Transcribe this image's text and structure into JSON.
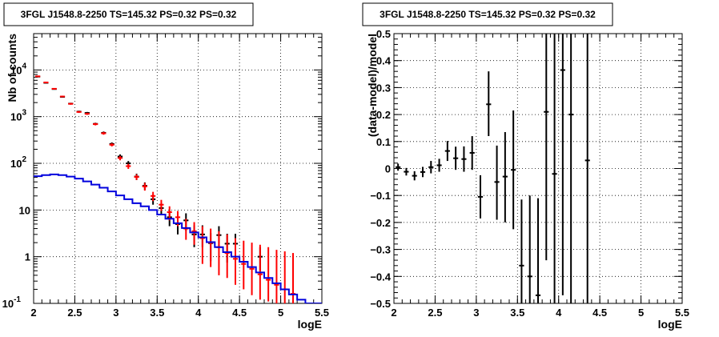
{
  "chart_data": [
    {
      "type": "scatter",
      "title": "3FGL J1548.8-2250 TS=145.32 PS=0.32 PS=0.32",
      "xlabel": "logE",
      "ylabel": "Nb of counts",
      "xlim": [
        2,
        5.5
      ],
      "ylim": [
        0.1,
        60000
      ],
      "yscale": "log",
      "grid": true,
      "xticks": [
        "2",
        "2.5",
        "3",
        "3.5",
        "4",
        "4.5",
        "5",
        "5.5"
      ],
      "yticks": [
        {
          "value": 0.1,
          "label": "10",
          "exp": "-1"
        },
        {
          "value": 1,
          "label": "1",
          "exp": ""
        },
        {
          "value": 10,
          "label": "10",
          "exp": ""
        },
        {
          "value": 100,
          "label": "10",
          "exp": "2"
        },
        {
          "value": 1000,
          "label": "10",
          "exp": "3"
        },
        {
          "value": 10000,
          "label": "10",
          "exp": "4"
        }
      ],
      "series": [
        {
          "color": "#000000",
          "style": "errorbars",
          "points": [
            {
              "x": 2.05,
              "y": 7200,
              "lo": 7030,
              "hi": 7370
            },
            {
              "x": 2.15,
              "y": 5300,
              "lo": 5150,
              "hi": 5450
            },
            {
              "x": 2.25,
              "y": 3900,
              "lo": 3780,
              "hi": 4020
            },
            {
              "x": 2.35,
              "y": 2650,
              "lo": 2550,
              "hi": 2750
            },
            {
              "x": 2.45,
              "y": 1900,
              "lo": 1820,
              "hi": 1980
            },
            {
              "x": 2.55,
              "y": 1280,
              "lo": 1220,
              "hi": 1340
            },
            {
              "x": 2.65,
              "y": 1200,
              "lo": 1140,
              "hi": 1260
            },
            {
              "x": 2.75,
              "y": 700,
              "lo": 660,
              "hi": 740
            },
            {
              "x": 2.85,
              "y": 450,
              "lo": 420,
              "hi": 480
            },
            {
              "x": 2.95,
              "y": 260,
              "lo": 240,
              "hi": 280
            },
            {
              "x": 3.05,
              "y": 140,
              "lo": 125,
              "hi": 155
            },
            {
              "x": 3.15,
              "y": 100,
              "lo": 88,
              "hi": 112
            },
            {
              "x": 3.25,
              "y": 52,
              "lo": 44,
              "hi": 60
            },
            {
              "x": 3.35,
              "y": 33,
              "lo": 27,
              "hi": 39
            },
            {
              "x": 3.45,
              "y": 17,
              "lo": 13,
              "hi": 21
            },
            {
              "x": 3.55,
              "y": 11,
              "lo": 8,
              "hi": 14
            },
            {
              "x": 3.65,
              "y": 7,
              "lo": 4.5,
              "hi": 9.5
            },
            {
              "x": 3.75,
              "y": 5,
              "lo": 3,
              "hi": 7.5
            },
            {
              "x": 3.85,
              "y": 6,
              "lo": 3.6,
              "hi": 8.5
            },
            {
              "x": 3.95,
              "y": 3,
              "lo": 1.6,
              "hi": 4.7
            },
            {
              "x": 4.05,
              "y": 3,
              "lo": 1.6,
              "hi": 4.7
            },
            {
              "x": 4.15,
              "y": 1.95,
              "lo": 0.8,
              "hi": 3.2
            },
            {
              "x": 4.25,
              "y": 2.9,
              "lo": 1.5,
              "hi": 4.5
            },
            {
              "x": 4.35,
              "y": 1.9,
              "lo": 0.75,
              "hi": 3.1
            },
            {
              "x": 4.45,
              "y": 1.9,
              "lo": 0.75,
              "hi": 3.1
            },
            {
              "x": 4.75,
              "y": 1.0,
              "lo": 0.5,
              "hi": 1.6
            }
          ]
        },
        {
          "color": "#ff0000",
          "style": "errorbars",
          "points": [
            {
              "x": 2.05,
              "y": 7300,
              "lo": 7130,
              "hi": 7470
            },
            {
              "x": 2.15,
              "y": 5400,
              "lo": 5250,
              "hi": 5550
            },
            {
              "x": 2.25,
              "y": 3950,
              "lo": 3830,
              "hi": 4070
            },
            {
              "x": 2.35,
              "y": 2700,
              "lo": 2600,
              "hi": 2800
            },
            {
              "x": 2.45,
              "y": 1880,
              "lo": 1800,
              "hi": 1960
            },
            {
              "x": 2.55,
              "y": 1260,
              "lo": 1200,
              "hi": 1320
            },
            {
              "x": 2.65,
              "y": 1150,
              "lo": 1090,
              "hi": 1210
            },
            {
              "x": 2.75,
              "y": 690,
              "lo": 650,
              "hi": 730
            },
            {
              "x": 2.85,
              "y": 440,
              "lo": 410,
              "hi": 470
            },
            {
              "x": 2.95,
              "y": 250,
              "lo": 230,
              "hi": 270
            },
            {
              "x": 3.05,
              "y": 130,
              "lo": 116,
              "hi": 144
            },
            {
              "x": 3.15,
              "y": 87,
              "lo": 76,
              "hi": 98
            },
            {
              "x": 3.25,
              "y": 51,
              "lo": 44,
              "hi": 58
            },
            {
              "x": 3.35,
              "y": 32,
              "lo": 26,
              "hi": 38
            },
            {
              "x": 3.45,
              "y": 20,
              "lo": 15.5,
              "hi": 24.5
            },
            {
              "x": 3.55,
              "y": 13,
              "lo": 9.5,
              "hi": 16.5
            },
            {
              "x": 3.65,
              "y": 9,
              "lo": 6,
              "hi": 12
            },
            {
              "x": 3.75,
              "y": 7,
              "lo": 4.5,
              "hi": 9.5
            },
            {
              "x": 3.85,
              "y": 4,
              "lo": 2.3,
              "hi": 6.5
            },
            {
              "x": 3.95,
              "y": 3.5,
              "lo": 1.8,
              "hi": 5.5
            },
            {
              "x": 4.05,
              "y": 2.5,
              "lo": 0.7,
              "hi": 4.5
            },
            {
              "x": 4.15,
              "y": 2,
              "lo": 0.6,
              "hi": 4.0
            },
            {
              "x": 4.25,
              "y": 1.6,
              "lo": 0.4,
              "hi": 3.5
            },
            {
              "x": 4.35,
              "y": 1.2,
              "lo": 0.35,
              "hi": 3.0
            },
            {
              "x": 4.45,
              "y": 0.9,
              "lo": 0.25,
              "hi": 2.5
            },
            {
              "x": 4.55,
              "y": 0.7,
              "lo": 0.2,
              "hi": 2.2
            },
            {
              "x": 4.65,
              "y": 0.55,
              "lo": 0.15,
              "hi": 2.0
            },
            {
              "x": 4.75,
              "y": 0.42,
              "lo": 0.12,
              "hi": 1.8
            },
            {
              "x": 4.85,
              "y": 0.32,
              "lo": 0.11,
              "hi": 1.6
            },
            {
              "x": 4.95,
              "y": 0.25,
              "lo": 0.1,
              "hi": 1.4
            },
            {
              "x": 5.05,
              "y": 0.2,
              "lo": 0.1,
              "hi": 1.3
            },
            {
              "x": 5.15,
              "y": 0.16,
              "lo": 0.1,
              "hi": 1.2
            }
          ]
        },
        {
          "color": "#0000dd",
          "style": "step",
          "bin_width": 0.1,
          "points": [
            {
              "x": 2.05,
              "y": 53
            },
            {
              "x": 2.15,
              "y": 56
            },
            {
              "x": 2.25,
              "y": 58
            },
            {
              "x": 2.35,
              "y": 56
            },
            {
              "x": 2.45,
              "y": 52
            },
            {
              "x": 2.55,
              "y": 47
            },
            {
              "x": 2.65,
              "y": 41
            },
            {
              "x": 2.75,
              "y": 35
            },
            {
              "x": 2.85,
              "y": 30
            },
            {
              "x": 2.95,
              "y": 25
            },
            {
              "x": 3.05,
              "y": 20.5
            },
            {
              "x": 3.15,
              "y": 17
            },
            {
              "x": 3.25,
              "y": 14
            },
            {
              "x": 3.35,
              "y": 12
            },
            {
              "x": 3.45,
              "y": 10
            },
            {
              "x": 3.55,
              "y": 8
            },
            {
              "x": 3.65,
              "y": 6.5
            },
            {
              "x": 3.75,
              "y": 5.2
            },
            {
              "x": 3.85,
              "y": 4.1
            },
            {
              "x": 3.95,
              "y": 3.3
            },
            {
              "x": 4.05,
              "y": 2.6
            },
            {
              "x": 4.15,
              "y": 2.05
            },
            {
              "x": 4.25,
              "y": 1.6
            },
            {
              "x": 4.35,
              "y": 1.25
            },
            {
              "x": 4.45,
              "y": 1.0
            },
            {
              "x": 4.55,
              "y": 0.78
            },
            {
              "x": 4.65,
              "y": 0.6
            },
            {
              "x": 4.75,
              "y": 0.46
            },
            {
              "x": 4.85,
              "y": 0.35
            },
            {
              "x": 4.95,
              "y": 0.27
            },
            {
              "x": 5.05,
              "y": 0.2
            },
            {
              "x": 5.15,
              "y": 0.155
            },
            {
              "x": 5.25,
              "y": 0.12
            },
            {
              "x": 5.35,
              "y": 0.1
            },
            {
              "x": 5.45,
              "y": 0.1
            }
          ]
        }
      ]
    },
    {
      "type": "scatter",
      "title": "3FGL J1548.8-2250 TS=145.32 PS=0.32 PS=0.32",
      "xlabel": "logE",
      "ylabel": "(data-model)/model",
      "xlim": [
        2,
        5.5
      ],
      "ylim": [
        -0.5,
        0.5
      ],
      "grid": true,
      "xticks": [
        "2",
        "2.5",
        "3",
        "3.5",
        "4",
        "4.5",
        "5",
        "5.5"
      ],
      "yticks": [
        "-0.5",
        "-0.4",
        "-0.3",
        "-0.2",
        "-0.1",
        "0",
        "0.1",
        "0.2",
        "0.3",
        "0.4",
        "0.5"
      ],
      "series": [
        {
          "color": "#000000",
          "style": "errorbars",
          "points": [
            {
              "x": 2.05,
              "y": 0.005,
              "lo": -0.008,
              "hi": 0.018
            },
            {
              "x": 2.15,
              "y": -0.012,
              "lo": -0.026,
              "hi": 0.002
            },
            {
              "x": 2.25,
              "y": -0.027,
              "lo": -0.044,
              "hi": -0.01
            },
            {
              "x": 2.35,
              "y": -0.013,
              "lo": -0.032,
              "hi": 0.006
            },
            {
              "x": 2.45,
              "y": 0.005,
              "lo": -0.018,
              "hi": 0.028
            },
            {
              "x": 2.55,
              "y": 0.012,
              "lo": -0.012,
              "hi": 0.036
            },
            {
              "x": 2.65,
              "y": 0.065,
              "lo": 0.028,
              "hi": 0.102
            },
            {
              "x": 2.75,
              "y": 0.038,
              "lo": -0.005,
              "hi": 0.081
            },
            {
              "x": 2.85,
              "y": 0.035,
              "lo": -0.012,
              "hi": 0.082
            },
            {
              "x": 2.95,
              "y": 0.058,
              "lo": -0.005,
              "hi": 0.12
            },
            {
              "x": 3.05,
              "y": -0.105,
              "lo": -0.185,
              "hi": -0.025
            },
            {
              "x": 3.15,
              "y": 0.238,
              "lo": 0.12,
              "hi": 0.36
            },
            {
              "x": 3.25,
              "y": -0.05,
              "lo": -0.19,
              "hi": 0.085
            },
            {
              "x": 3.35,
              "y": -0.03,
              "lo": -0.2,
              "hi": 0.135
            },
            {
              "x": 3.45,
              "y": -0.005,
              "lo": -0.225,
              "hi": 0.215
            },
            {
              "x": 3.55,
              "y": -0.36,
              "lo": -0.6,
              "hi": -0.115
            },
            {
              "x": 3.65,
              "y": -0.4,
              "lo": -0.7,
              "hi": -0.1
            },
            {
              "x": 3.75,
              "y": -0.47,
              "lo": -0.8,
              "hi": -0.11
            },
            {
              "x": 3.85,
              "y": 0.21,
              "lo": -0.34,
              "hi": 0.76
            },
            {
              "x": 3.95,
              "y": -0.02,
              "lo": -0.5,
              "hi": 0.6
            },
            {
              "x": 4.05,
              "y": 0.365,
              "lo": -0.47,
              "hi": 1.2
            },
            {
              "x": 4.15,
              "y": 0.2,
              "lo": -0.6,
              "hi": 1.0
            },
            {
              "x": 4.35,
              "y": 0.03,
              "lo": -0.75,
              "hi": 0.85
            }
          ]
        }
      ]
    }
  ]
}
